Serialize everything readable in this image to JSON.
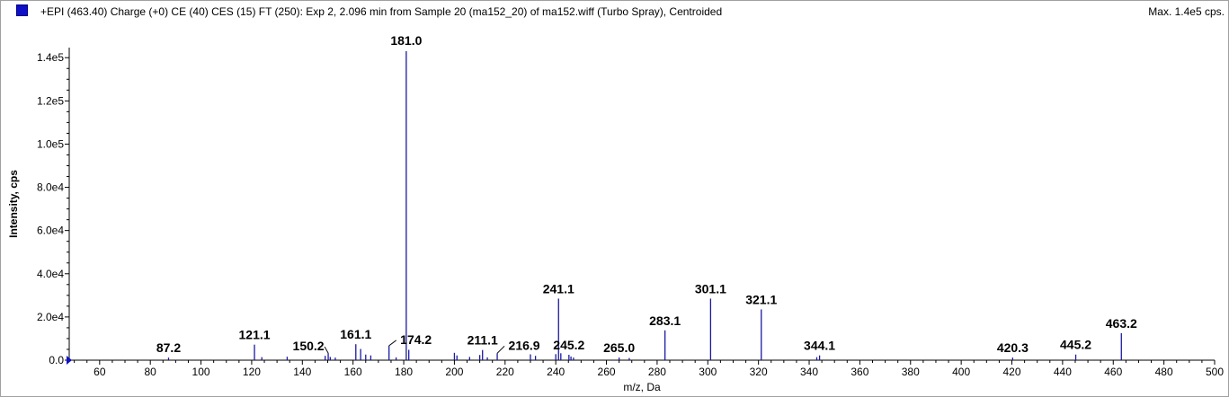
{
  "header": {
    "title": "+EPI (463.40) Charge (+0) CE (40) CES (15) FT (250): Exp 2, 2.096 min from Sample 20 (ma152_20) of ma152.wiff (Turbo Spray), Centroided",
    "max_label": "Max. 1.4e5 cps."
  },
  "colors": {
    "peak": "#1a1aa0",
    "legend": "#1010c8",
    "axis": "#000000"
  },
  "chart_data": {
    "type": "bar",
    "xlabel": "m/z, Da",
    "ylabel": "Intensity, cps",
    "xlim": [
      48,
      500
    ],
    "ylim": [
      0,
      143000
    ],
    "x_ticks": [
      60,
      80,
      100,
      120,
      140,
      160,
      180,
      200,
      220,
      240,
      260,
      280,
      300,
      320,
      340,
      360,
      380,
      400,
      420,
      440,
      460,
      480,
      500
    ],
    "y_ticks": [
      {
        "value": 0,
        "label": "0.0"
      },
      {
        "value": 20000,
        "label": "2.0e4"
      },
      {
        "value": 40000,
        "label": "4.0e4"
      },
      {
        "value": 60000,
        "label": "6.0e4"
      },
      {
        "value": 80000,
        "label": "8.0e4"
      },
      {
        "value": 100000,
        "label": "1.0e5"
      },
      {
        "value": 120000,
        "label": "1.2e5"
      },
      {
        "value": 140000,
        "label": "1.4e5"
      }
    ],
    "peaks": [
      {
        "mz": 87.2,
        "intensity": 1200
      },
      {
        "mz": 121.1,
        "intensity": 7200
      },
      {
        "mz": 124.0,
        "intensity": 1400
      },
      {
        "mz": 134.0,
        "intensity": 1600
      },
      {
        "mz": 149.0,
        "intensity": 2000
      },
      {
        "mz": 150.2,
        "intensity": 3300
      },
      {
        "mz": 151.0,
        "intensity": 1500
      },
      {
        "mz": 153.0,
        "intensity": 1200
      },
      {
        "mz": 161.1,
        "intensity": 7400
      },
      {
        "mz": 163.0,
        "intensity": 5200
      },
      {
        "mz": 165.0,
        "intensity": 2600
      },
      {
        "mz": 167.0,
        "intensity": 2200
      },
      {
        "mz": 174.2,
        "intensity": 6700
      },
      {
        "mz": 177.0,
        "intensity": 1300
      },
      {
        "mz": 181.0,
        "intensity": 143000
      },
      {
        "mz": 182.0,
        "intensity": 4800
      },
      {
        "mz": 200.0,
        "intensity": 3400
      },
      {
        "mz": 201.0,
        "intensity": 2200
      },
      {
        "mz": 206.0,
        "intensity": 1500
      },
      {
        "mz": 210.0,
        "intensity": 2400
      },
      {
        "mz": 211.1,
        "intensity": 4700
      },
      {
        "mz": 213.0,
        "intensity": 1300
      },
      {
        "mz": 216.9,
        "intensity": 3200
      },
      {
        "mz": 230.0,
        "intensity": 2700
      },
      {
        "mz": 232.0,
        "intensity": 2000
      },
      {
        "mz": 240.0,
        "intensity": 2800
      },
      {
        "mz": 241.1,
        "intensity": 28500
      },
      {
        "mz": 242.0,
        "intensity": 3200
      },
      {
        "mz": 245.2,
        "intensity": 2500
      },
      {
        "mz": 246.0,
        "intensity": 1700
      },
      {
        "mz": 247.0,
        "intensity": 1200
      },
      {
        "mz": 265.0,
        "intensity": 1200
      },
      {
        "mz": 269.0,
        "intensity": 1000
      },
      {
        "mz": 283.1,
        "intensity": 13800
      },
      {
        "mz": 301.1,
        "intensity": 28500
      },
      {
        "mz": 321.1,
        "intensity": 23500
      },
      {
        "mz": 343.0,
        "intensity": 1400
      },
      {
        "mz": 344.1,
        "intensity": 2200
      },
      {
        "mz": 420.3,
        "intensity": 1200
      },
      {
        "mz": 445.2,
        "intensity": 2600
      },
      {
        "mz": 463.2,
        "intensity": 12500
      }
    ],
    "peak_labels": [
      "87.2",
      "121.1",
      "150.2",
      "161.1",
      "174.2",
      "181.0",
      "211.1",
      "216.9",
      "241.1",
      "245.2",
      "265.0",
      "283.1",
      "301.1",
      "321.1",
      "344.1",
      "420.3",
      "445.2",
      "463.2"
    ]
  }
}
